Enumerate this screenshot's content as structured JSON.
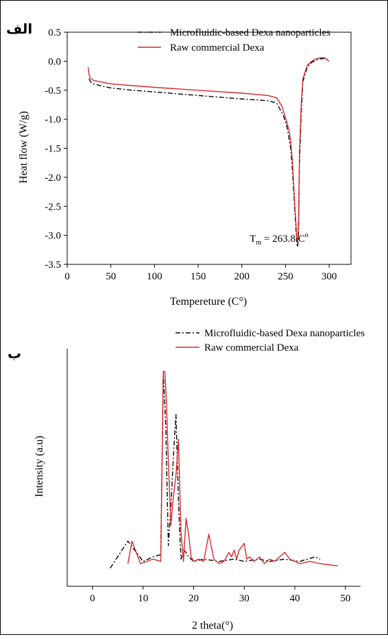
{
  "chart_data": [
    {
      "type": "line",
      "panel_label": "الف",
      "xlabel": "Tempereture (C°)",
      "ylabel": "Heat flow (W/g)",
      "xlim": [
        0,
        325
      ],
      "ylim": [
        -3.5,
        0.5
      ],
      "xticks": [
        0,
        50,
        100,
        150,
        200,
        250,
        300
      ],
      "yticks": [
        0.5,
        0.0,
        -0.5,
        -1.0,
        -1.5,
        -2.0,
        -2.5,
        -3.0,
        -3.5
      ],
      "ytick_labels": [
        "0.5",
        "0.0",
        "-0.5",
        "-1.0",
        "-1.5",
        "-2.0",
        "-2.5",
        "-3.0",
        "-3.5"
      ],
      "legend_position": "top-right",
      "grid": false,
      "annotation": {
        "main": "T",
        "sub": "m",
        "rest": " = 263.8 C",
        "sup": "o",
        "x": 264,
        "y": -3.05
      },
      "series": [
        {
          "name": "Microfluidic-based Dexa nanoparticles",
          "color": "#000000",
          "style": "dash-dot",
          "x": [
            25,
            27,
            30,
            40,
            50,
            75,
            100,
            150,
            200,
            230,
            240,
            248,
            252,
            256,
            258,
            260,
            262,
            263,
            264,
            265,
            266,
            268,
            270,
            275,
            280,
            285,
            290,
            295,
            300
          ],
          "y": [
            -0.3,
            -0.36,
            -0.39,
            -0.43,
            -0.46,
            -0.5,
            -0.53,
            -0.59,
            -0.65,
            -0.68,
            -0.72,
            -0.95,
            -1.15,
            -1.5,
            -1.9,
            -2.4,
            -2.9,
            -3.15,
            -3.2,
            -2.9,
            -1.8,
            -0.9,
            -0.35,
            -0.1,
            -0.02,
            0.02,
            0.04,
            0.05,
            0.0
          ]
        },
        {
          "name": "Raw commercial Dexa",
          "color": "#d62728",
          "style": "solid",
          "x": [
            24,
            25,
            26,
            28,
            30,
            40,
            50,
            75,
            100,
            150,
            200,
            230,
            240,
            246,
            250,
            254,
            256,
            258,
            260,
            262,
            263,
            264,
            265,
            266,
            268,
            270,
            275,
            280,
            285,
            290,
            295,
            300
          ],
          "y": [
            -0.1,
            -0.22,
            -0.28,
            -0.31,
            -0.33,
            -0.36,
            -0.39,
            -0.42,
            -0.45,
            -0.5,
            -0.55,
            -0.59,
            -0.63,
            -0.78,
            -0.98,
            -1.18,
            -1.38,
            -1.75,
            -2.3,
            -2.8,
            -3.05,
            -3.1,
            -2.7,
            -1.6,
            -0.75,
            -0.3,
            -0.07,
            0.0,
            0.04,
            0.06,
            0.06,
            0.0
          ]
        }
      ]
    },
    {
      "type": "line",
      "panel_label": "ب",
      "xlabel": "2 theta(°)",
      "ylabel": "Intensity (a.u)",
      "xlim": [
        -5,
        53
      ],
      "ylim": [
        0,
        100
      ],
      "xticks": [
        0,
        10,
        20,
        30,
        40,
        50
      ],
      "legend_position": "top-right",
      "grid": false,
      "series": [
        {
          "name": "Microfluidic-based Dexa nanoparticles",
          "color": "#000000",
          "style": "dash-dot",
          "x": [
            3.5,
            7,
            10,
            12,
            13.5,
            14,
            14.5,
            15,
            15.5,
            16,
            16.5,
            17,
            17.5,
            18,
            18.5,
            19,
            20,
            22,
            25,
            28,
            30,
            33,
            35,
            38,
            41,
            44,
            45
          ],
          "y": [
            8,
            20,
            11,
            13,
            14,
            95,
            70,
            18,
            35,
            58,
            76,
            38,
            12,
            16,
            15,
            13,
            11,
            12,
            11,
            12,
            11,
            12,
            11,
            12,
            11,
            13,
            12
          ],
          "clip_to_axes": false
        },
        {
          "name": "Raw commercial Dexa",
          "color": "#d62728",
          "style": "solid",
          "x": [
            7,
            7.8,
            9.5,
            12,
            13.5,
            14,
            14.3,
            14.6,
            15,
            15.5,
            16,
            16.5,
            17,
            17.5,
            18,
            18.5,
            19,
            19.5,
            20,
            21,
            22,
            23,
            24,
            25,
            26,
            27,
            27.5,
            28,
            28.5,
            29,
            30,
            30.5,
            31,
            32,
            33,
            34,
            35,
            36,
            37,
            38,
            39,
            40,
            41,
            43,
            45,
            48.5
          ],
          "y": [
            10,
            20,
            10,
            12,
            11,
            95,
            95,
            83,
            55,
            27,
            40,
            49,
            65,
            24,
            11,
            30,
            23,
            13,
            11,
            12,
            11,
            23,
            12,
            10,
            11,
            15,
            13,
            16,
            12,
            16,
            19,
            12,
            13,
            11,
            13,
            10,
            12,
            11,
            13,
            15,
            12,
            11,
            10,
            11,
            10,
            9
          ]
        }
      ]
    }
  ]
}
